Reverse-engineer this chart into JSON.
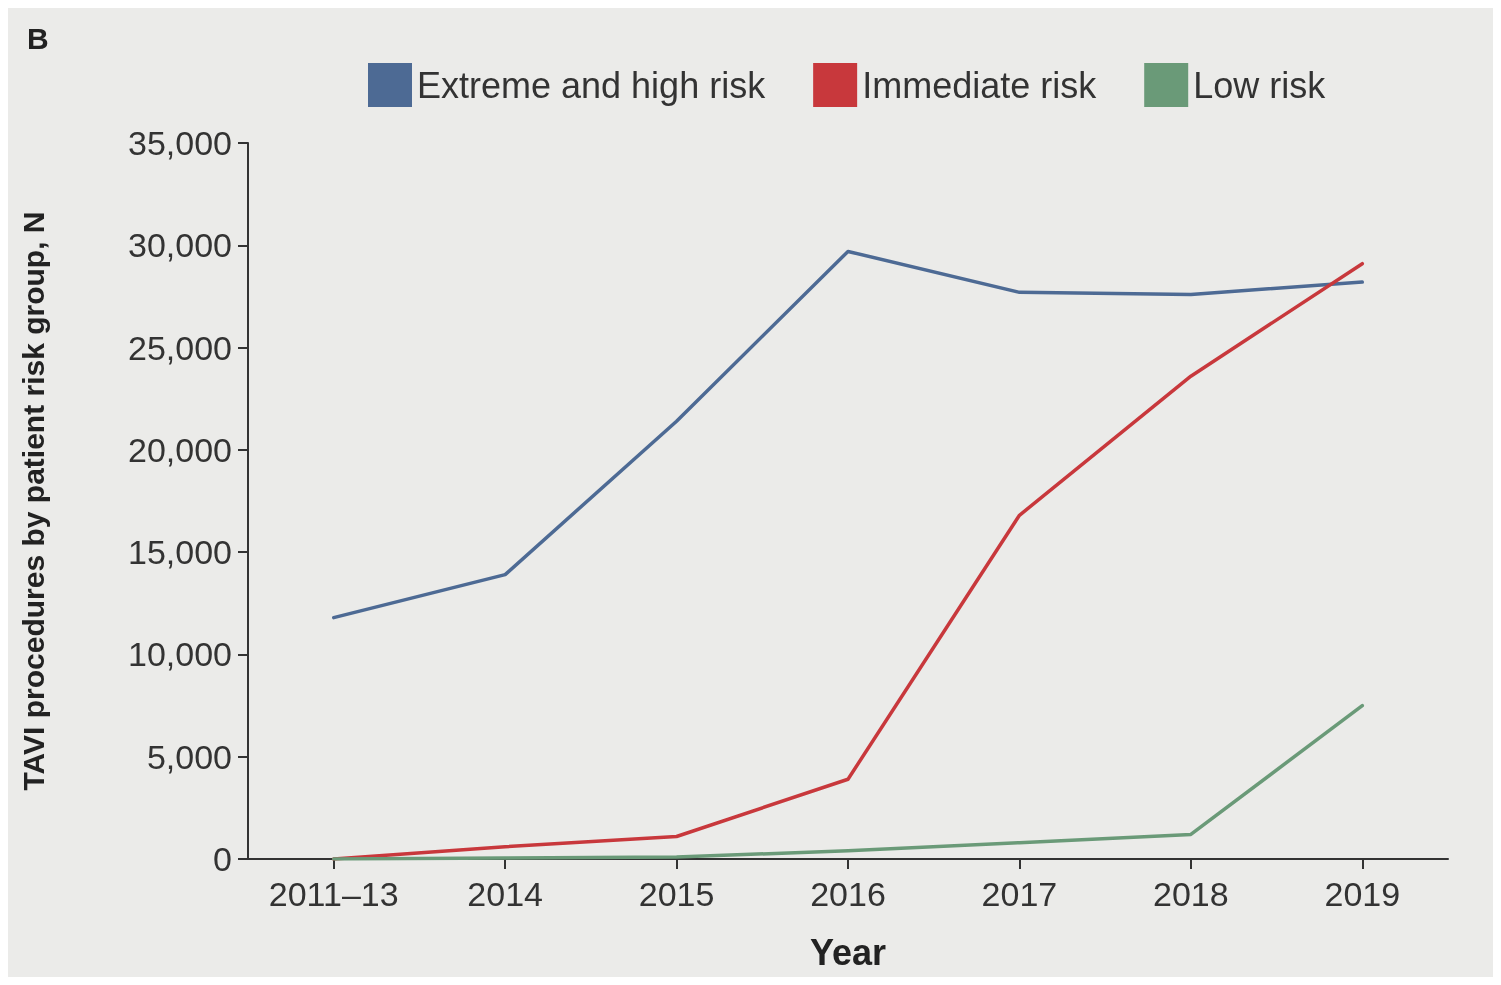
{
  "chart_data": {
    "type": "line",
    "title": "B",
    "xlabel": "Year",
    "ylabel": "TAVI procedures by patient risk group, N",
    "categories": [
      "2011–13",
      "2014",
      "2015",
      "2016",
      "2017",
      "2018",
      "2019"
    ],
    "series": [
      {
        "name": "Extreme and high risk",
        "color": "#4d6a94",
        "values": [
          11800,
          13900,
          21400,
          29700,
          27700,
          27600,
          28200
        ]
      },
      {
        "name": "Immediate risk",
        "color": "#c8383c",
        "values": [
          0,
          600,
          1100,
          3900,
          16800,
          23600,
          29100
        ]
      },
      {
        "name": "Low risk",
        "color": "#6a9a78",
        "values": [
          0,
          50,
          100,
          400,
          800,
          1200,
          7500
        ]
      }
    ],
    "ylim": [
      0,
      35000
    ],
    "yticks": [
      {
        "value": 0,
        "label": "0"
      },
      {
        "value": 5000,
        "label": "5,000"
      },
      {
        "value": 10000,
        "label": "10,000"
      },
      {
        "value": 15000,
        "label": "15,000"
      },
      {
        "value": 20000,
        "label": "20,000"
      },
      {
        "value": 25000,
        "label": "25,000"
      },
      {
        "value": 30000,
        "label": "30,000"
      },
      {
        "value": 35000,
        "label": "35,000"
      }
    ],
    "grid": false,
    "legend": "top",
    "marker": "none",
    "line_style": "solid"
  }
}
